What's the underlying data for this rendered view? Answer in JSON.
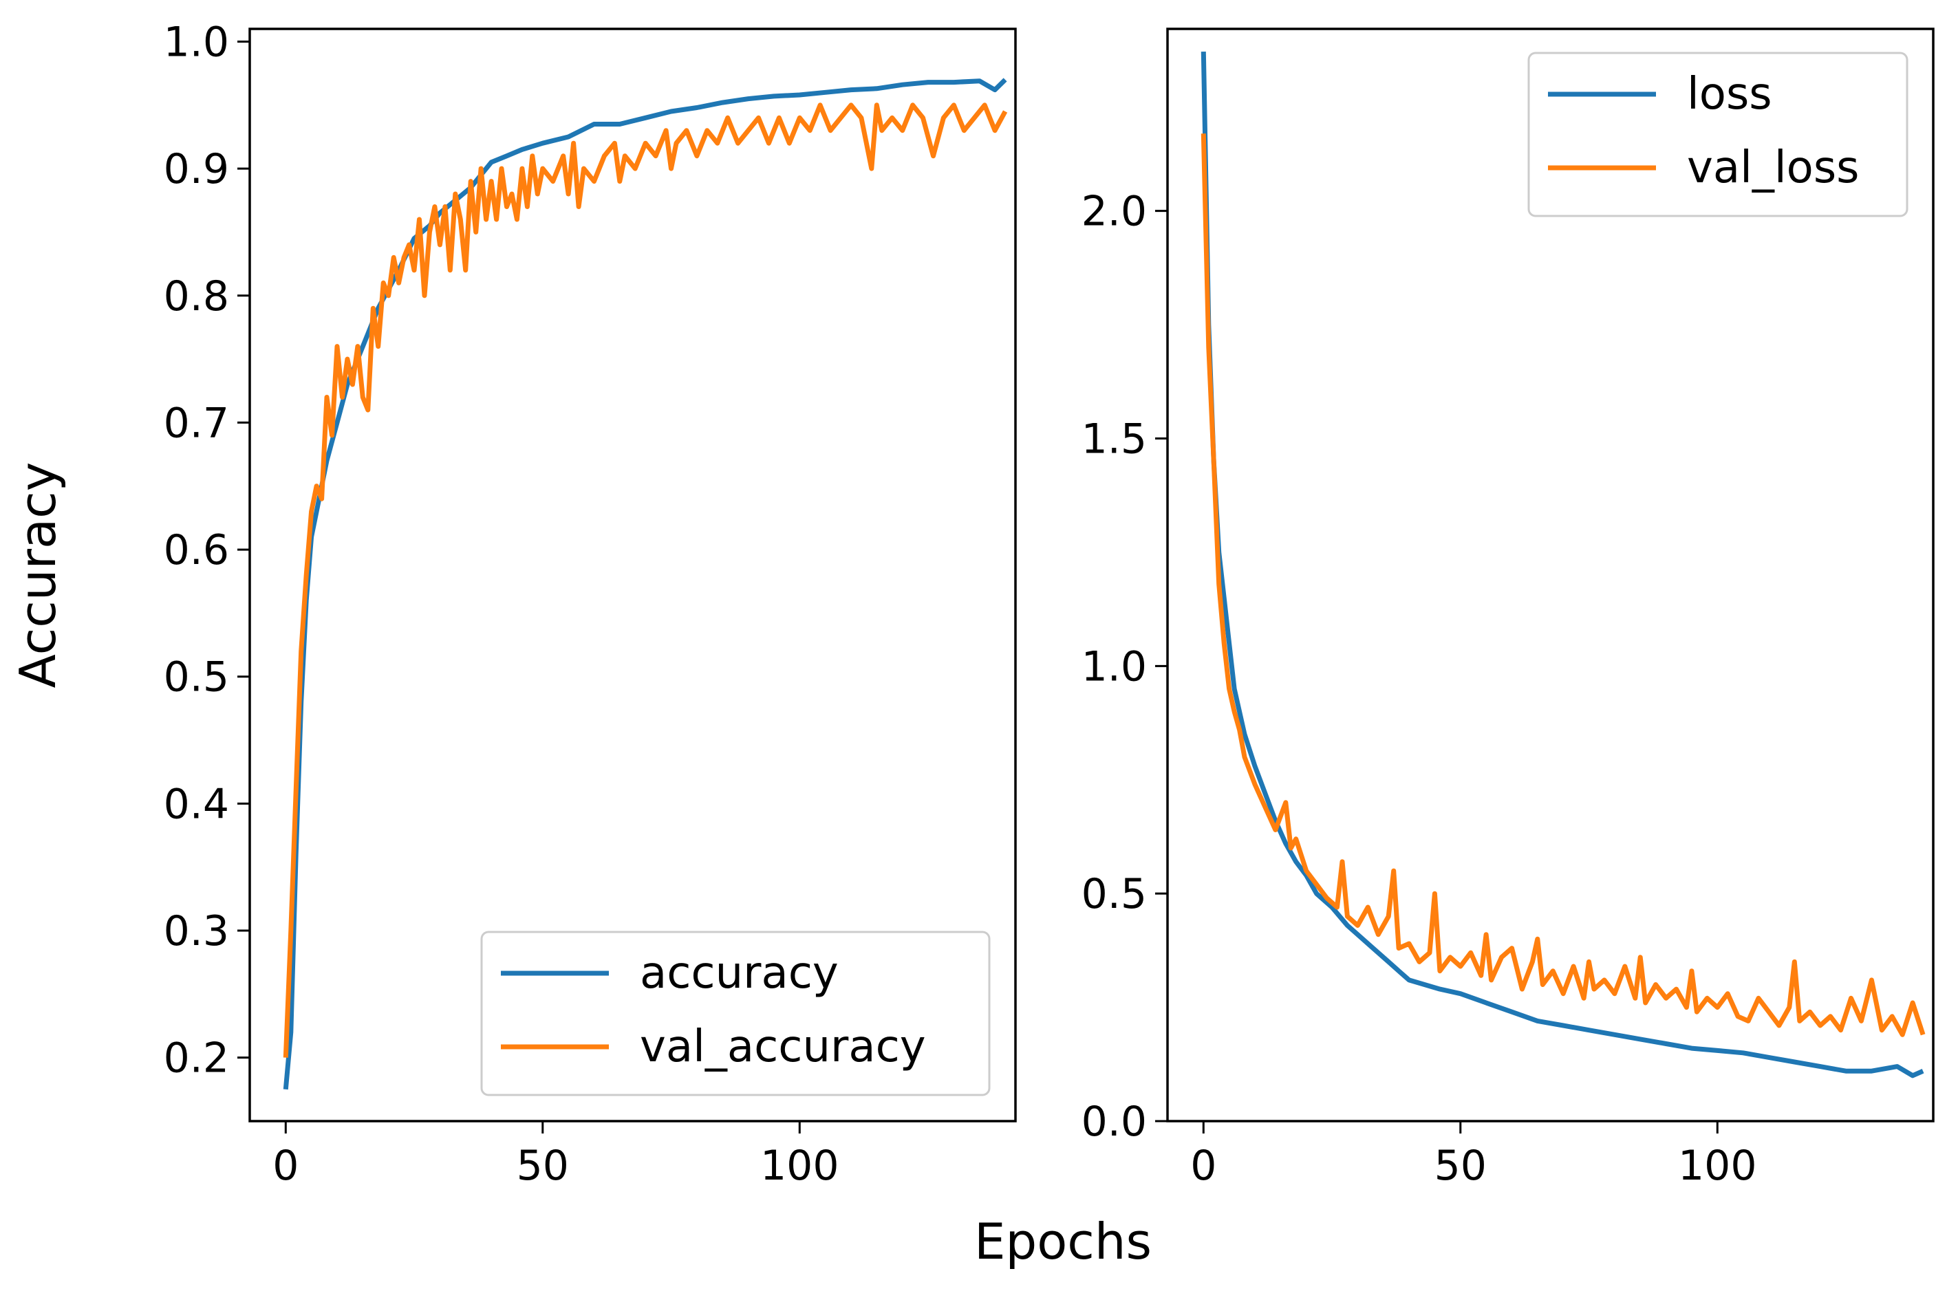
{
  "figure": {
    "shared_xlabel": "Epochs"
  },
  "colors": {
    "blue": "#1f77b4",
    "orange": "#ff7f0e",
    "axes": "#000000",
    "legend_border": "#cccccc"
  },
  "chart_data": [
    {
      "type": "line",
      "title": "",
      "xlabel": "",
      "ylabel": "Accuracy",
      "xlim": [
        -7,
        142
      ],
      "ylim": [
        0.15,
        1.01
      ],
      "xticks": [
        0,
        50,
        100
      ],
      "xtick_labels": [
        "0",
        "50",
        "100"
      ],
      "yticks": [
        0.2,
        0.3,
        0.4,
        0.5,
        0.6,
        0.7,
        0.8,
        0.9,
        1.0
      ],
      "ytick_labels": [
        "0.2",
        "0.3",
        "0.4",
        "0.5",
        "0.6",
        "0.7",
        "0.8",
        "0.9",
        "1.0"
      ],
      "grid": false,
      "legend_position": "lower-right",
      "series": [
        {
          "name": "accuracy",
          "color": "#1f77b4",
          "x": [
            0,
            1,
            2,
            3,
            4,
            5,
            6,
            8,
            10,
            12,
            14,
            16,
            18,
            20,
            22,
            25,
            28,
            30,
            33,
            36,
            38,
            40,
            43,
            46,
            50,
            55,
            60,
            65,
            70,
            75,
            80,
            85,
            90,
            95,
            100,
            105,
            110,
            115,
            120,
            125,
            130,
            135,
            138,
            140
          ],
          "y": [
            0.175,
            0.22,
            0.36,
            0.48,
            0.56,
            0.61,
            0.63,
            0.67,
            0.7,
            0.73,
            0.75,
            0.77,
            0.79,
            0.805,
            0.82,
            0.845,
            0.855,
            0.865,
            0.875,
            0.885,
            0.895,
            0.905,
            0.91,
            0.915,
            0.92,
            0.925,
            0.935,
            0.935,
            0.94,
            0.945,
            0.948,
            0.952,
            0.955,
            0.957,
            0.958,
            0.96,
            0.962,
            0.963,
            0.966,
            0.968,
            0.968,
            0.969,
            0.962,
            0.97
          ]
        },
        {
          "name": "val_accuracy",
          "color": "#ff7f0e",
          "x": [
            0,
            1,
            2,
            3,
            4,
            5,
            6,
            7,
            8,
            9,
            10,
            11,
            12,
            13,
            14,
            15,
            16,
            17,
            18,
            19,
            20,
            21,
            22,
            23,
            24,
            25,
            26,
            27,
            28,
            29,
            30,
            31,
            32,
            33,
            34,
            35,
            36,
            37,
            38,
            39,
            40,
            41,
            42,
            43,
            44,
            45,
            46,
            47,
            48,
            49,
            50,
            52,
            54,
            55,
            56,
            57,
            58,
            60,
            62,
            64,
            65,
            66,
            68,
            70,
            72,
            74,
            75,
            76,
            78,
            80,
            82,
            84,
            86,
            88,
            90,
            92,
            94,
            95,
            96,
            98,
            100,
            102,
            104,
            106,
            108,
            110,
            112,
            114,
            115,
            116,
            118,
            120,
            122,
            124,
            126,
            128,
            130,
            132,
            134,
            136,
            138,
            140
          ],
          "y": [
            0.2,
            0.3,
            0.41,
            0.52,
            0.58,
            0.63,
            0.65,
            0.64,
            0.72,
            0.69,
            0.76,
            0.72,
            0.75,
            0.73,
            0.76,
            0.72,
            0.71,
            0.79,
            0.76,
            0.81,
            0.8,
            0.83,
            0.81,
            0.83,
            0.84,
            0.82,
            0.86,
            0.8,
            0.85,
            0.87,
            0.84,
            0.87,
            0.82,
            0.88,
            0.86,
            0.82,
            0.89,
            0.85,
            0.9,
            0.86,
            0.89,
            0.86,
            0.9,
            0.87,
            0.88,
            0.86,
            0.9,
            0.87,
            0.91,
            0.88,
            0.9,
            0.89,
            0.91,
            0.88,
            0.92,
            0.87,
            0.9,
            0.89,
            0.91,
            0.92,
            0.89,
            0.91,
            0.9,
            0.92,
            0.91,
            0.93,
            0.9,
            0.92,
            0.93,
            0.91,
            0.93,
            0.92,
            0.94,
            0.92,
            0.93,
            0.94,
            0.92,
            0.93,
            0.94,
            0.92,
            0.94,
            0.93,
            0.95,
            0.93,
            0.94,
            0.95,
            0.94,
            0.9,
            0.95,
            0.93,
            0.94,
            0.93,
            0.95,
            0.94,
            0.91,
            0.94,
            0.95,
            0.93,
            0.94,
            0.95,
            0.93,
            0.945
          ]
        }
      ]
    },
    {
      "type": "line",
      "title": "",
      "xlabel": "",
      "ylabel": "",
      "xlim": [
        -7,
        142
      ],
      "ylim": [
        0.0,
        2.4
      ],
      "xticks": [
        0,
        50,
        100
      ],
      "xtick_labels": [
        "0",
        "50",
        "100"
      ],
      "yticks": [
        0.0,
        0.5,
        1.0,
        1.5,
        2.0
      ],
      "ytick_labels": [
        "0.0",
        "0.5",
        "1.0",
        "1.5",
        "2.0"
      ],
      "grid": false,
      "legend_position": "upper-right",
      "series": [
        {
          "name": "loss",
          "color": "#1f77b4",
          "x": [
            0,
            1,
            2,
            3,
            4,
            5,
            6,
            8,
            10,
            12,
            14,
            16,
            18,
            20,
            22,
            25,
            28,
            30,
            33,
            36,
            38,
            40,
            43,
            46,
            50,
            55,
            60,
            65,
            70,
            75,
            80,
            85,
            90,
            95,
            100,
            105,
            110,
            115,
            120,
            125,
            130,
            135,
            138,
            140
          ],
          "y": [
            2.35,
            1.75,
            1.45,
            1.25,
            1.15,
            1.05,
            0.95,
            0.85,
            0.78,
            0.72,
            0.66,
            0.61,
            0.57,
            0.54,
            0.5,
            0.47,
            0.43,
            0.41,
            0.38,
            0.35,
            0.33,
            0.31,
            0.3,
            0.29,
            0.28,
            0.26,
            0.24,
            0.22,
            0.21,
            0.2,
            0.19,
            0.18,
            0.17,
            0.16,
            0.155,
            0.15,
            0.14,
            0.13,
            0.12,
            0.11,
            0.11,
            0.12,
            0.1,
            0.11
          ]
        },
        {
          "name": "val_loss",
          "color": "#ff7f0e",
          "x": [
            0,
            1,
            2,
            3,
            4,
            5,
            6,
            7,
            8,
            10,
            12,
            14,
            16,
            17,
            18,
            20,
            22,
            24,
            26,
            27,
            28,
            30,
            32,
            34,
            36,
            37,
            38,
            40,
            42,
            44,
            45,
            46,
            48,
            50,
            52,
            54,
            55,
            56,
            58,
            60,
            62,
            64,
            65,
            66,
            68,
            70,
            72,
            74,
            75,
            76,
            78,
            80,
            82,
            84,
            85,
            86,
            88,
            90,
            92,
            94,
            95,
            96,
            98,
            100,
            102,
            104,
            106,
            108,
            110,
            112,
            114,
            115,
            116,
            118,
            120,
            122,
            124,
            126,
            128,
            130,
            132,
            134,
            136,
            138,
            140
          ],
          "y": [
            2.17,
            1.7,
            1.45,
            1.18,
            1.05,
            0.95,
            0.9,
            0.86,
            0.8,
            0.74,
            0.69,
            0.64,
            0.7,
            0.6,
            0.62,
            0.55,
            0.52,
            0.49,
            0.47,
            0.57,
            0.45,
            0.43,
            0.47,
            0.41,
            0.45,
            0.55,
            0.38,
            0.39,
            0.35,
            0.37,
            0.5,
            0.33,
            0.36,
            0.34,
            0.37,
            0.32,
            0.41,
            0.31,
            0.36,
            0.38,
            0.29,
            0.35,
            0.4,
            0.3,
            0.33,
            0.28,
            0.34,
            0.27,
            0.35,
            0.29,
            0.31,
            0.28,
            0.34,
            0.27,
            0.36,
            0.26,
            0.3,
            0.27,
            0.29,
            0.25,
            0.33,
            0.24,
            0.27,
            0.25,
            0.28,
            0.23,
            0.22,
            0.27,
            0.24,
            0.21,
            0.25,
            0.35,
            0.22,
            0.24,
            0.21,
            0.23,
            0.2,
            0.27,
            0.22,
            0.31,
            0.2,
            0.23,
            0.19,
            0.26,
            0.19
          ]
        }
      ]
    }
  ]
}
